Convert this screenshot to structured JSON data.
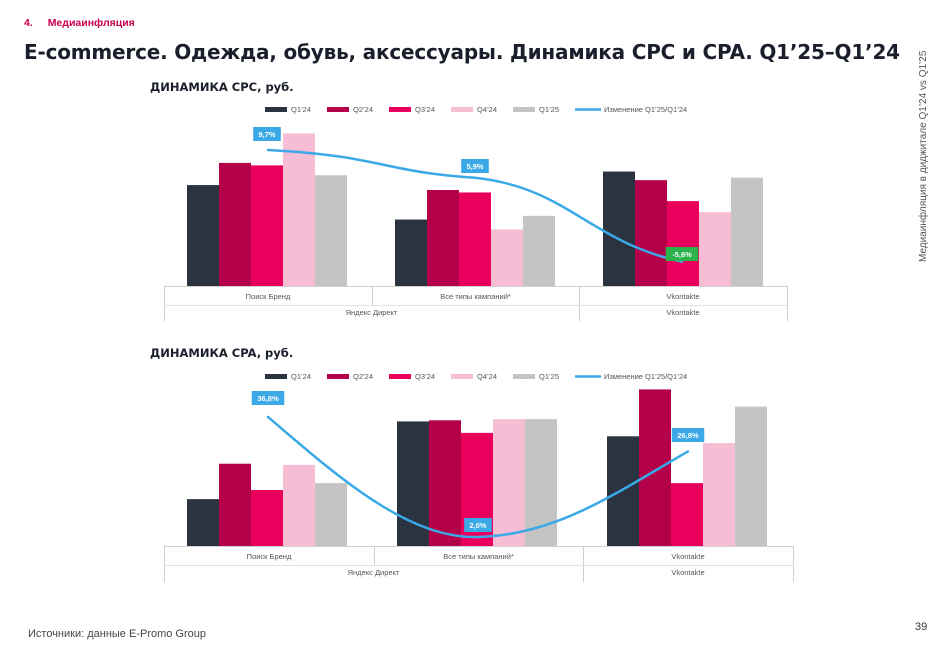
{
  "header": {
    "section_num": "4.",
    "section_label": "Медиаинфляция",
    "title": "E-commerce. Одежда, обувь, аксессуары. Динамика CPC и CPA. Q1’25–Q1’24",
    "side_text": "Медиаинфляция в диджитале Q1’24 vs Q1’25"
  },
  "footer": {
    "source": "Источники: данные E-Promo Group",
    "page": "39"
  },
  "colors": {
    "Q1'24": "#2b3240",
    "Q2'24": "#b30049",
    "Q3'24": "#e8005c",
    "Q4'24": "#f7bdd5",
    "Q1'25": "#c4c4c4",
    "line": "#3aa9e6",
    "label_pos": "#3aa9e6",
    "label_neg": "#2ab24b"
  },
  "chart_data": [
    {
      "type": "bar",
      "title": "ДИНАМИКА CPC, руб.",
      "categories": [
        "Поиск Бренд",
        "Все типы кампаний*",
        "Vkontakte"
      ],
      "groups": [
        {
          "label": "Яндекс Директ",
          "span": 2
        },
        {
          "label": "Vkontakte",
          "span": 1
        }
      ],
      "series": [
        {
          "name": "Q1'24",
          "values": [
            82,
            54,
            93
          ]
        },
        {
          "name": "Q2'24",
          "values": [
            100,
            78,
            86
          ]
        },
        {
          "name": "Q3'24",
          "values": [
            98,
            76,
            69
          ]
        },
        {
          "name": "Q4'24",
          "values": [
            124,
            46,
            60
          ]
        },
        {
          "name": "Q1'25",
          "values": [
            90,
            57,
            88
          ]
        }
      ],
      "line": {
        "name": "Изменение Q1'25/Q1'24",
        "values": [
          9.7,
          5.9,
          -5.6
        ],
        "labels": [
          "9,7%",
          "5,9%",
          "-5,6%"
        ]
      },
      "ylim": [
        0,
        130
      ]
    },
    {
      "type": "bar",
      "title": "ДИНАМИКА CPA, руб.",
      "categories": [
        "Поиск Бренд",
        "Все типы кампаний*",
        "Vkontakte"
      ],
      "groups": [
        {
          "label": "Яндекс Директ",
          "span": 2
        },
        {
          "label": "Vkontakte",
          "span": 1
        }
      ],
      "series": [
        {
          "name": "Q1'24",
          "values": [
            41,
            109,
            96
          ]
        },
        {
          "name": "Q2'24",
          "values": [
            72,
            110,
            137
          ]
        },
        {
          "name": "Q3'24",
          "values": [
            49,
            99,
            55
          ]
        },
        {
          "name": "Q4'24",
          "values": [
            71,
            111,
            90
          ]
        },
        {
          "name": "Q1'25",
          "values": [
            55,
            111,
            122
          ]
        }
      ],
      "line": {
        "name": "Изменение Q1'25/Q1'24",
        "values": [
          36.8,
          2.0,
          26.8
        ],
        "labels": [
          "36,8%",
          "2,0%",
          "26,8%"
        ]
      },
      "ylim": [
        0,
        140
      ]
    }
  ]
}
